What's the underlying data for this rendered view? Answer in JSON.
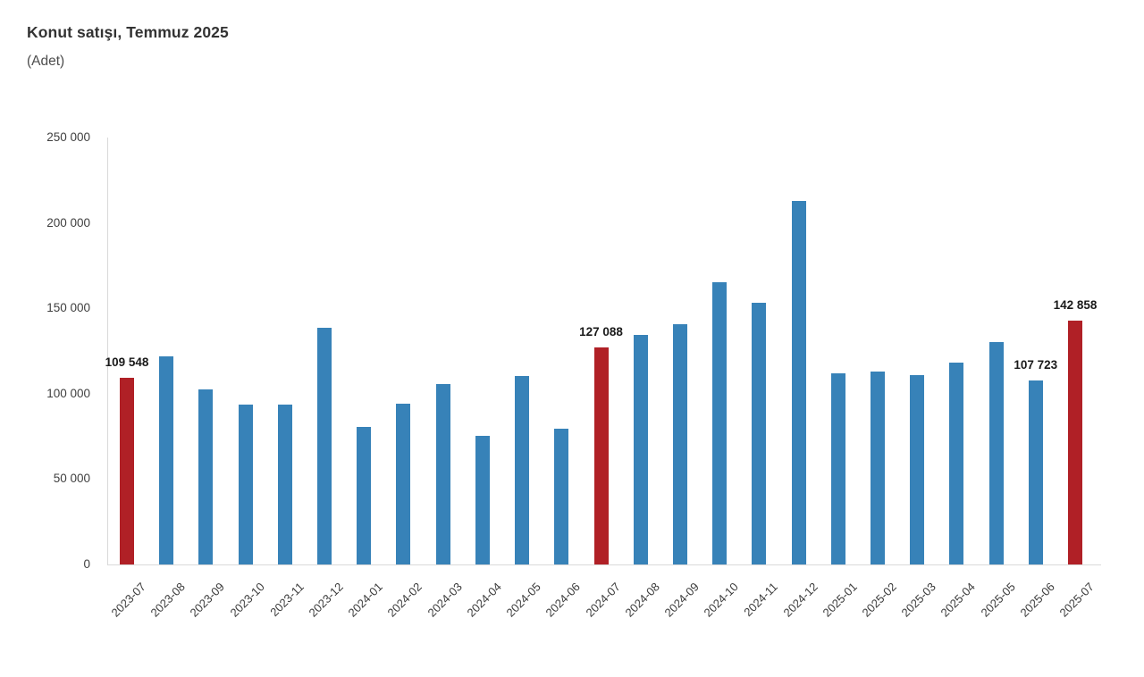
{
  "header": {
    "title": "Konut satışı, Temmuz 2025",
    "subtitle": "(Adet)"
  },
  "chart_data": {
    "type": "bar",
    "title": "Konut satışı, Temmuz 2025",
    "unit_label": "(Adet)",
    "grid": "off",
    "legend": "none",
    "categories": [
      "2023-07",
      "2023-08",
      "2023-09",
      "2023-10",
      "2023-11",
      "2023-12",
      "2024-01",
      "2024-02",
      "2024-03",
      "2024-04",
      "2024-05",
      "2024-06",
      "2024-07",
      "2024-08",
      "2024-09",
      "2024-10",
      "2024-11",
      "2024-12",
      "2025-01",
      "2025-02",
      "2025-03",
      "2025-04",
      "2025-05",
      "2025-06",
      "2025-07"
    ],
    "values": [
      109548,
      122091,
      102656,
      93761,
      93514,
      138577,
      80308,
      93902,
      105476,
      75569,
      110588,
      79313,
      127088,
      134155,
      140919,
      165138,
      153014,
      212637,
      112173,
      112818,
      110795,
      118359,
      130025,
      107723,
      142858
    ],
    "highlight_indices": [
      0,
      12,
      24
    ],
    "labeled_points": [
      {
        "index": 0,
        "label": "109 548"
      },
      {
        "index": 12,
        "label": "127 088"
      },
      {
        "index": 23,
        "label": "107 723"
      },
      {
        "index": 24,
        "label": "142 858"
      }
    ],
    "y_axis": {
      "min": 0,
      "max": 250000,
      "tick_step": 50000,
      "ticks": [
        {
          "value": 0,
          "label": "0"
        },
        {
          "value": 50000,
          "label": "50 000"
        },
        {
          "value": 100000,
          "label": "100 000"
        },
        {
          "value": 150000,
          "label": "150 000"
        },
        {
          "value": 200000,
          "label": "200 000"
        },
        {
          "value": 250000,
          "label": "250 000"
        }
      ]
    },
    "colors": {
      "bar": "#3782b8",
      "highlight": "#b02026",
      "axis_line": "#d9d9d9",
      "data_label_text": "#1a1a1a",
      "tick_text": "#404040"
    }
  }
}
